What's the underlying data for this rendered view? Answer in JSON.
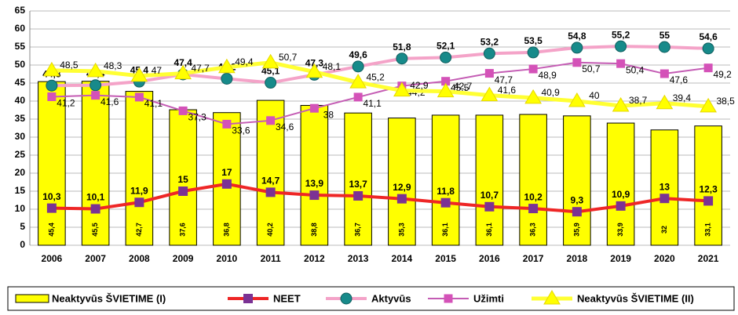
{
  "chart_data": {
    "type": "combo",
    "categories": [
      "2006",
      "2007",
      "2008",
      "2009",
      "2010",
      "2011",
      "2012",
      "2013",
      "2014",
      "2015",
      "2016",
      "2017",
      "2018",
      "2019",
      "2020",
      "2021"
    ],
    "ylim": [
      0,
      65
    ],
    "yticks": [
      0,
      5,
      10,
      15,
      20,
      25,
      30,
      35,
      40,
      45,
      50,
      55,
      60,
      65
    ],
    "grid": true,
    "legend": "bottom",
    "series": [
      {
        "name": "Neaktyvūs ŠVIETIME (I)",
        "type": "bar",
        "color": "#ffff00",
        "values": [
          45.4,
          45.5,
          42.7,
          37.6,
          36.8,
          40.2,
          38.8,
          36.7,
          35.3,
          36.1,
          36.1,
          36.3,
          35.9,
          33.9,
          32,
          33.1
        ],
        "value_labels": [
          "45,4",
          "45,5",
          "42,7",
          "37,6",
          "36,8",
          "40,2",
          "38,8",
          "36,7",
          "35,3",
          "36,1",
          "36,1",
          "36,3",
          "35,9",
          "33,9",
          "32",
          "33,1"
        ]
      },
      {
        "name": "NEET",
        "type": "line",
        "color": "#ee2626",
        "marker": "square",
        "marker_color": "#7b3294",
        "values": [
          10.3,
          10.1,
          11.9,
          15,
          17,
          14.7,
          13.9,
          13.7,
          12.9,
          11.8,
          10.7,
          10.2,
          9.3,
          10.9,
          13,
          12.3
        ],
        "value_labels": [
          "10,3",
          "10,1",
          "11,9",
          "15",
          "17",
          "14,7",
          "13,9",
          "13,7",
          "12,9",
          "11,8",
          "10,7",
          "10,2",
          "9,3",
          "10,9",
          "13",
          "12,3"
        ]
      },
      {
        "name": "Aktyvūs",
        "type": "line",
        "color": "#f4a3c8",
        "marker": "circle",
        "marker_color": "#178a8a",
        "values": [
          44.3,
          44.4,
          45.4,
          47.4,
          46.2,
          45.1,
          47.3,
          49.6,
          51.8,
          52.1,
          53.2,
          53.5,
          54.8,
          55.2,
          55,
          54.6
        ],
        "value_labels": [
          "44,3",
          "44,4",
          "45,4",
          "47,4",
          "46,2",
          "45,1",
          "47,3",
          "49,6",
          "51,8",
          "52,1",
          "53,2",
          "53,5",
          "54,8",
          "55,2",
          "55",
          "54,6"
        ]
      },
      {
        "name": "Užimti",
        "type": "line",
        "color": "#c45cb4",
        "marker": "square",
        "marker_color": "#d452b8",
        "values": [
          41.2,
          41.6,
          41.1,
          37.3,
          33.6,
          34.6,
          38,
          41.1,
          44.2,
          45.5,
          47.7,
          48.9,
          50.7,
          50.4,
          47.6,
          49.2
        ],
        "value_labels": [
          "41,2",
          "41,6",
          "41,1",
          "37,3",
          "33,6",
          "34,6",
          "38",
          "41,1",
          "44,2",
          "45,5",
          "47,7",
          "48,9",
          "50,7",
          "50,4",
          "47,6",
          "49,2"
        ]
      },
      {
        "name": "Neaktyvūs ŠVIETIME (II)",
        "type": "line",
        "color": "#ffff33",
        "marker": "triangle",
        "marker_color": "#ffff00",
        "values": [
          48.5,
          48.3,
          47,
          47.7,
          49.4,
          50.7,
          48.1,
          45.2,
          42.9,
          42.7,
          41.6,
          40.9,
          40,
          38.7,
          39.4,
          38.5
        ],
        "value_labels": [
          "48,5",
          "48,3",
          "47",
          "47,7",
          "49,4",
          "50,7",
          "48,1",
          "45,2",
          "42,9",
          "42,7",
          "41,6",
          "40,9",
          "40",
          "38,7",
          "39,4",
          "38,5"
        ]
      }
    ]
  }
}
